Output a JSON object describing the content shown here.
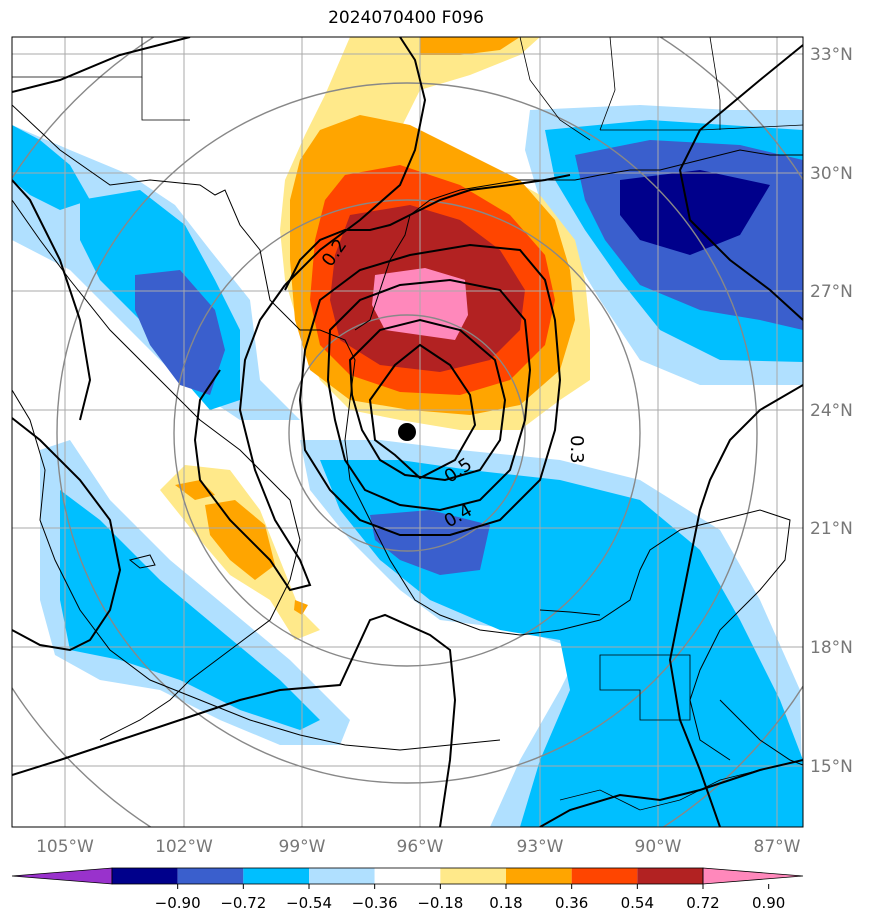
{
  "title": "2024070400 F096",
  "lon_labels": [
    "105°W",
    "102°W",
    "99°W",
    "96°W",
    "93°W",
    "90°W",
    "87°W"
  ],
  "lat_labels": [
    "33°N",
    "30°N",
    "27°N",
    "24°N",
    "21°N",
    "18°N",
    "15°N"
  ],
  "colorbar": {
    "ticks": [
      "−0.90",
      "−0.72",
      "−0.54",
      "−0.36",
      "−0.18",
      "0.18",
      "0.36",
      "0.54",
      "0.72",
      "0.90"
    ],
    "colors": [
      "#9932CC",
      "#00008B",
      "#3A5FCD",
      "#00BFFF",
      "#B0E0FF",
      "#FFFFFF",
      "#FFE98A",
      "#FFA500",
      "#FF4500",
      "#B22222",
      "#FF88BB"
    ]
  },
  "contour_labels": [
    "0.2",
    "0.3",
    "0.4",
    "0.5"
  ],
  "center_marker": "storm-center"
}
